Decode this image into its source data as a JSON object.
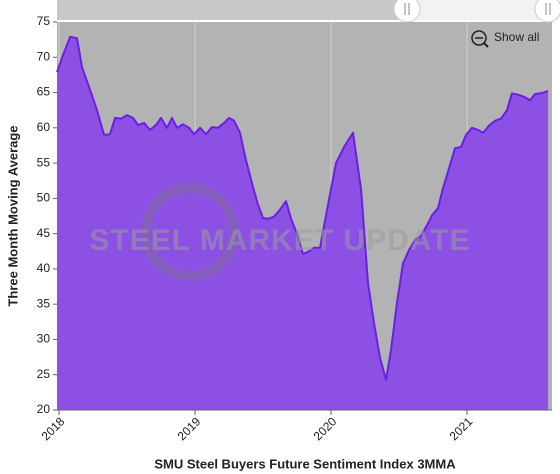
{
  "watermark": "STEEL MARKET UPDATE",
  "show_all": "Show all",
  "chart_data": {
    "type": "area",
    "x_label": "SMU Steel Buyers Future Sentiment Index 3MMA",
    "y_label": "Three Month Moving Average",
    "xlim": [
      2017.985,
      2021.625
    ],
    "xticks": [
      2018,
      2019,
      2020,
      2021
    ],
    "ylim": [
      20,
      75
    ],
    "yticks": [
      20,
      25,
      30,
      35,
      40,
      45,
      50,
      55,
      60,
      65,
      70,
      75
    ],
    "grid": true,
    "fill_color": "#8c50e4",
    "line_color": "#6a1fe6",
    "x": [
      2017.985,
      2018.029,
      2018.081,
      2018.132,
      2018.169,
      2018.228,
      2018.279,
      2018.331,
      2018.375,
      2018.412,
      2018.456,
      2018.5,
      2018.544,
      2018.581,
      2018.625,
      2018.669,
      2018.713,
      2018.75,
      2018.794,
      2018.831,
      2018.868,
      2018.912,
      2018.956,
      2018.993,
      2019.037,
      2019.081,
      2019.125,
      2019.169,
      2019.213,
      2019.25,
      2019.287,
      2019.331,
      2019.375,
      2019.426,
      2019.463,
      2019.5,
      2019.537,
      2019.581,
      2019.625,
      2019.669,
      2019.706,
      2019.75,
      2019.794,
      2019.838,
      2019.875,
      2019.919,
      2019.971,
      2020.037,
      2020.096,
      2020.162,
      2020.221,
      2020.272,
      2020.316,
      2020.36,
      2020.404,
      2020.441,
      2020.485,
      2020.529,
      2020.574,
      2020.618,
      2020.662,
      2020.706,
      2020.743,
      2020.787,
      2020.824,
      2020.868,
      2020.912,
      2020.956,
      2020.993,
      2021.037,
      2021.081,
      2021.118,
      2021.162,
      2021.206,
      2021.25,
      2021.294,
      2021.331,
      2021.375,
      2021.419,
      2021.463,
      2021.5,
      2021.544,
      2021.596
    ],
    "values": [
      67.9,
      70.3,
      72.9,
      72.7,
      68.6,
      65.4,
      62.5,
      59.0,
      59.1,
      61.4,
      61.3,
      61.8,
      61.4,
      60.4,
      60.7,
      59.7,
      60.4,
      61.4,
      60.0,
      61.4,
      60.0,
      60.5,
      60.0,
      59.1,
      60.0,
      59.1,
      60.1,
      60.0,
      60.7,
      61.4,
      61.0,
      59.3,
      55.4,
      51.6,
      49.1,
      47.2,
      47.1,
      47.4,
      48.4,
      49.6,
      47.1,
      45.0,
      42.1,
      42.5,
      43.0,
      43.0,
      48.4,
      55.0,
      57.3,
      59.3,
      51.2,
      38.0,
      32.3,
      27.4,
      24.3,
      28.5,
      35.2,
      40.8,
      42.7,
      44.1,
      44.7,
      46.2,
      47.6,
      48.6,
      51.5,
      54.3,
      57.1,
      57.3,
      59.0,
      60.0,
      59.7,
      59.3,
      60.3,
      61.0,
      61.3,
      62.5,
      64.9,
      64.7,
      64.4,
      63.9,
      64.8,
      64.9,
      65.2
    ]
  }
}
